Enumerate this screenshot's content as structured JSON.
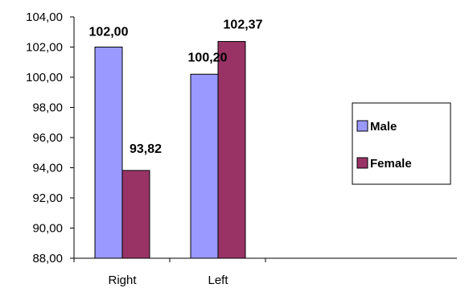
{
  "chart_data": {
    "type": "bar",
    "categories": [
      "Right",
      "Left"
    ],
    "series": [
      {
        "name": "Male",
        "values": [
          102.0,
          100.2
        ],
        "labels": [
          "102,00",
          "100,20"
        ],
        "color": "#9999FF"
      },
      {
        "name": "Female",
        "values": [
          93.82,
          102.37
        ],
        "labels": [
          "93,82",
          "102,37"
        ],
        "color": "#993366"
      }
    ],
    "ylim": [
      88,
      104
    ],
    "yticks": [
      88,
      90,
      92,
      94,
      96,
      98,
      100,
      102,
      104
    ],
    "ytick_labels": [
      "88,00",
      "90,00",
      "92,00",
      "94,00",
      "96,00",
      "98,00",
      "100,00",
      "102,00",
      "104,00"
    ],
    "grid": false,
    "legend_position": "right",
    "title": "",
    "xlabel": "",
    "ylabel": ""
  }
}
